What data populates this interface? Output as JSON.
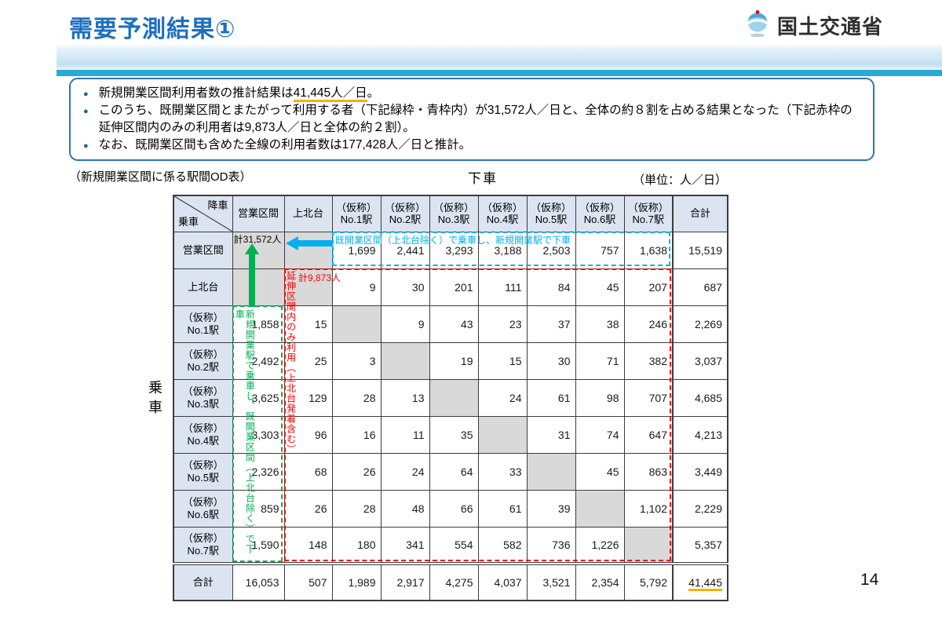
{
  "page": {
    "title": "需要予測結果①",
    "page_number": "14"
  },
  "logo": {
    "text": "国土交通省"
  },
  "summary_box": {
    "bullet_glyph": "●",
    "bullets": [
      {
        "prefix": "新規開業区間利用者数の推計結果は",
        "highlight": "41,445人／日",
        "suffix": "。"
      },
      {
        "text": "このうち、既開業区間とまたがって利用する者（下記緑枠・青枠内）が31,572人／日と、全体の約８割を占める結果となった（下記赤枠の延伸区間内のみの利用者は9,873人／日と全体の約２割）。"
      },
      {
        "text": "なお、既開業区間も含めた全線の利用者数は177,428人／日と推計。"
      }
    ]
  },
  "table_section": {
    "caption": "（新規開業区間に係る駅間OD表）",
    "alight_label": "下車",
    "board_label": "乗車",
    "unit_label": "（単位：人／日）"
  },
  "annotations": {
    "blue_box_label": "既開業区間（上北台除く）で乗車し、新規開業駅で下車",
    "green_total": "計31,572人",
    "red_total": "計9,873人",
    "red_vertical_label": "延伸区間内のみ利用（上北台発着含む）",
    "green_vertical_label": "新規開業駅で乗車し、既開業区間（上北台除く）で下車"
  },
  "od_table": {
    "corner": {
      "top": "降車",
      "bottom": "乗車"
    },
    "col_headers": [
      "営業区間",
      "上北台",
      "（仮称）\nNo.1駅",
      "（仮称）\nNo.2駅",
      "（仮称）\nNo.3駅",
      "（仮称）\nNo.4駅",
      "（仮称）\nNo.5駅",
      "（仮称）\nNo.6駅",
      "（仮称）\nNo.7駅",
      "合計"
    ],
    "rows": [
      {
        "label": "営業区間",
        "gray": [
          0,
          1
        ],
        "values": [
          "",
          "",
          "1,699",
          "2,441",
          "3,293",
          "3,188",
          "2,503",
          "757",
          "1,638",
          "15,519"
        ]
      },
      {
        "label": "上北台",
        "gray": [
          0,
          1
        ],
        "values": [
          "",
          "",
          "9",
          "30",
          "201",
          "111",
          "84",
          "45",
          "207",
          "687"
        ]
      },
      {
        "label": "（仮称）\nNo.1駅",
        "gray": [
          2
        ],
        "values": [
          "1,858",
          "15",
          "",
          "9",
          "43",
          "23",
          "37",
          "38",
          "246",
          "2,269"
        ]
      },
      {
        "label": "（仮称）\nNo.2駅",
        "gray": [
          3
        ],
        "values": [
          "2,492",
          "25",
          "3",
          "",
          "19",
          "15",
          "30",
          "71",
          "382",
          "3,037"
        ]
      },
      {
        "label": "（仮称）\nNo.3駅",
        "gray": [
          4
        ],
        "values": [
          "3,625",
          "129",
          "28",
          "13",
          "",
          "24",
          "61",
          "98",
          "707",
          "4,685"
        ]
      },
      {
        "label": "（仮称）\nNo.4駅",
        "gray": [
          5
        ],
        "values": [
          "3,303",
          "96",
          "16",
          "11",
          "35",
          "",
          "31",
          "74",
          "647",
          "4,213"
        ]
      },
      {
        "label": "（仮称）\nNo.5駅",
        "gray": [
          6
        ],
        "values": [
          "2,326",
          "68",
          "26",
          "24",
          "64",
          "33",
          "",
          "45",
          "863",
          "3,449"
        ]
      },
      {
        "label": "（仮称）\nNo.6駅",
        "gray": [
          7
        ],
        "values": [
          "859",
          "26",
          "28",
          "48",
          "66",
          "61",
          "39",
          "",
          "1,102",
          "2,229"
        ]
      },
      {
        "label": "（仮称）\nNo.7駅",
        "gray": [
          8
        ],
        "values": [
          "1,590",
          "148",
          "180",
          "341",
          "554",
          "582",
          "736",
          "1,226",
          "",
          "5,357"
        ]
      },
      {
        "label": "合計",
        "gray": [],
        "values": [
          "16,053",
          "507",
          "1,989",
          "2,917",
          "4,275",
          "4,037",
          "3,521",
          "2,354",
          "5,792",
          "41,445"
        ]
      }
    ],
    "underline_total": true
  },
  "colors": {
    "title_blue": "#1e6fc0",
    "band_cyan": "#2aa9d3",
    "box_border_blue": "#2e75b6",
    "highlight_underline": "#f2b200",
    "annotation_blue": "#00b0f0",
    "annotation_green": "#00b050",
    "annotation_red": "#ff0000",
    "header_cell_fill": "#dce4f1",
    "gray_cell_fill": "#d9d9d9"
  }
}
